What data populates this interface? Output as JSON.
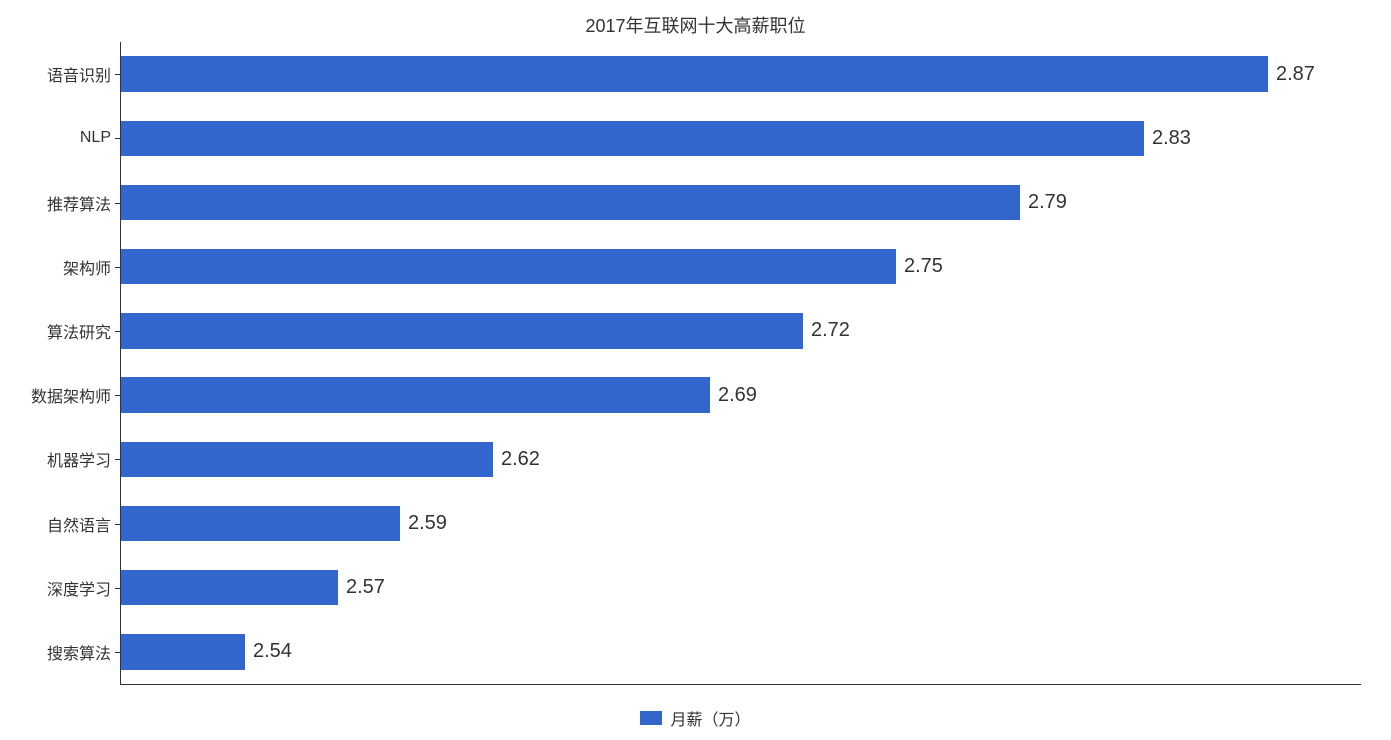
{
  "chart": {
    "type": "bar-horizontal",
    "title": "2017年互联网十大高薪职位",
    "title_fontsize": 18,
    "title_color": "#333333",
    "background_color": "#ffffff",
    "axis_color": "#333333",
    "bar_color": "#3366cc",
    "value_label_fontsize": 20,
    "value_label_color": "#333333",
    "category_label_fontsize": 16,
    "category_label_color": "#333333",
    "xlim_min": 2.5,
    "xlim_max": 2.9,
    "bar_height_ratio": 0.55,
    "categories": [
      "语音识别",
      "NLP",
      "推荐算法",
      "架构师",
      "算法研究",
      "数据架构师",
      "机器学习",
      "自然语言",
      "深度学习",
      "搜索算法"
    ],
    "values": [
      2.87,
      2.83,
      2.79,
      2.75,
      2.72,
      2.69,
      2.62,
      2.59,
      2.57,
      2.54
    ],
    "value_labels": [
      "2.87",
      "2.83",
      "2.79",
      "2.75",
      "2.72",
      "2.69",
      "2.62",
      "2.59",
      "2.57",
      "2.54"
    ],
    "legend": {
      "swatch_color": "#3366cc",
      "label": "月薪（万）",
      "position": "bottom",
      "fontsize": 16
    }
  }
}
